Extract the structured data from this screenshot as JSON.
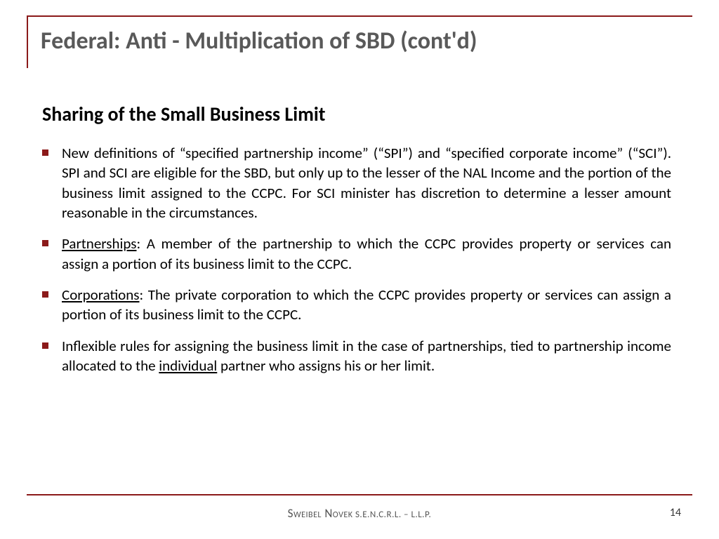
{
  "colors": {
    "accent": "#8b1a1a",
    "title_text": "#595959",
    "body_text": "#000000",
    "footer_text": "#555555",
    "background": "#ffffff"
  },
  "typography": {
    "title_size_pt": 26,
    "subtitle_size_pt": 21,
    "body_size_pt": 16,
    "footer_size_pt": 13
  },
  "title": "Federal: Anti - Multiplication of SBD (cont'd)",
  "subtitle": "Sharing of the Small Business Limit",
  "bullets": [
    {
      "lead": "",
      "text": "New definitions of “specified partnership income” (“SPI”) and “specified corporate income” (“SCI”). SPI and SCI are eligible for the SBD, but only up to the lesser of the NAL Income and the portion of the business limit assigned to the CCPC. For SCI minister has discretion to determine a lesser amount reasonable in the circumstances."
    },
    {
      "lead": "Partnerships",
      "text": ": A member of the partnership to which the CCPC provides property or services can assign a portion of its business limit to the CCPC."
    },
    {
      "lead": "Corporations",
      "text": ": The private corporation to which the CCPC provides property or services can assign a portion of its business limit to the CCPC."
    },
    {
      "lead": "",
      "pre": "Inflexible rules for assigning the business limit in the case of partnerships, tied to partnership income allocated to the ",
      "underlined": "individual",
      "post": " partner who assigns his or her limit."
    }
  ],
  "footer": {
    "firm": "Sweibel Novek",
    "suffix": " S.E.N.C.R.L. – L.L.P."
  },
  "page_number": "14"
}
